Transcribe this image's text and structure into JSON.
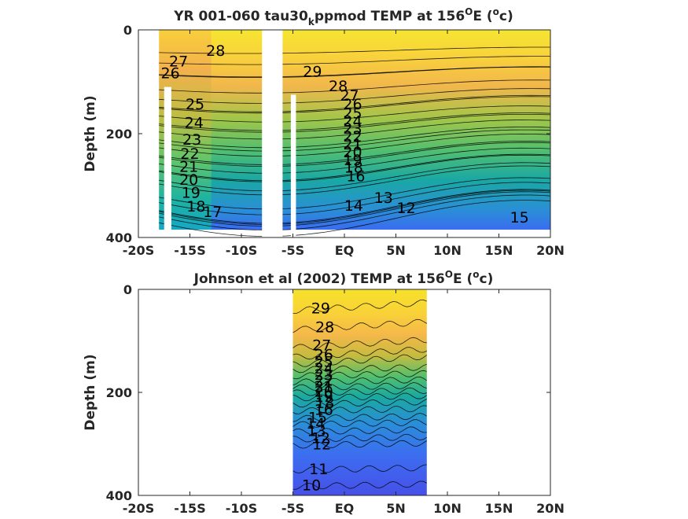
{
  "chart_data": [
    {
      "type": "heatmap",
      "title": "YR 001-060 tau30",
      "title_sub": "k",
      "title_rest": "ppmod TEMP at 156",
      "title_sup1": "O",
      "title_mid": "E (",
      "title_sup2": "o",
      "title_end": "c)",
      "ylabel": "Depth (m)",
      "xlim": [
        -20,
        20
      ],
      "ylim": [
        0,
        400
      ],
      "y_reversed": true,
      "x_ticks": [
        {
          "value": -20,
          "label": "-20S"
        },
        {
          "value": -15,
          "label": "-15S"
        },
        {
          "value": -10,
          "label": "-10S"
        },
        {
          "value": -5,
          "label": "-5S"
        },
        {
          "value": 0,
          "label": "EQ"
        },
        {
          "value": 5,
          "label": "5N"
        },
        {
          "value": 10,
          "label": "10N"
        },
        {
          "value": 15,
          "label": "15N"
        },
        {
          "value": 20,
          "label": "20N"
        }
      ],
      "y_ticks": [
        {
          "value": 0,
          "label": "0"
        },
        {
          "value": 200,
          "label": "200"
        },
        {
          "value": 400,
          "label": "400"
        }
      ],
      "data_extent": {
        "x": [
          -18,
          20
        ],
        "depth": [
          0,
          385
        ]
      },
      "masked_columns": [
        {
          "x": [
            -17.5,
            -16.8
          ],
          "depth_from": 110
        },
        {
          "x": [
            -8.0,
            -6.0
          ],
          "depth_from": 0
        },
        {
          "x": [
            -5.2,
            -4.7
          ],
          "depth_from": 125
        }
      ],
      "contour_labels": [
        {
          "x": -12.5,
          "depth": 42,
          "label": "28"
        },
        {
          "x": -16.1,
          "depth": 62,
          "label": "27"
        },
        {
          "x": -16.9,
          "depth": 85,
          "label": "26"
        },
        {
          "x": -14.5,
          "depth": 145,
          "label": "25"
        },
        {
          "x": -14.6,
          "depth": 180,
          "label": "24"
        },
        {
          "x": -14.8,
          "depth": 213,
          "label": "23"
        },
        {
          "x": -15.0,
          "depth": 240,
          "label": "22"
        },
        {
          "x": -15.1,
          "depth": 265,
          "label": "21"
        },
        {
          "x": -15.1,
          "depth": 290,
          "label": "20"
        },
        {
          "x": -14.9,
          "depth": 315,
          "label": "19"
        },
        {
          "x": -14.4,
          "depth": 342,
          "label": "18"
        },
        {
          "x": -12.8,
          "depth": 352,
          "label": "17"
        },
        {
          "x": -3.1,
          "depth": 82,
          "label": "29"
        },
        {
          "x": -0.6,
          "depth": 110,
          "label": "28"
        },
        {
          "x": 0.5,
          "depth": 128,
          "label": "27"
        },
        {
          "x": 0.8,
          "depth": 145,
          "label": "26"
        },
        {
          "x": 0.8,
          "depth": 162,
          "label": "25"
        },
        {
          "x": 0.8,
          "depth": 177,
          "label": "24"
        },
        {
          "x": 0.8,
          "depth": 192,
          "label": "23"
        },
        {
          "x": 0.8,
          "depth": 207,
          "label": "22"
        },
        {
          "x": 0.8,
          "depth": 222,
          "label": "21"
        },
        {
          "x": 0.8,
          "depth": 237,
          "label": "20"
        },
        {
          "x": 0.8,
          "depth": 252,
          "label": "19"
        },
        {
          "x": 0.9,
          "depth": 267,
          "label": "18"
        },
        {
          "x": 1.1,
          "depth": 283,
          "label": "16"
        },
        {
          "x": 0.9,
          "depth": 340,
          "label": "14"
        },
        {
          "x": 3.8,
          "depth": 325,
          "label": "13"
        },
        {
          "x": 6.0,
          "depth": 345,
          "label": "12"
        },
        {
          "x": 17.0,
          "depth": 363,
          "label": "15"
        }
      ]
    },
    {
      "type": "heatmap",
      "title": "Johnson et al (2002) TEMP at 156",
      "title_sup1": "O",
      "title_mid": "E (",
      "title_sup2": "o",
      "title_end": "c)",
      "ylabel": "Depth (m)",
      "xlim": [
        -20,
        20
      ],
      "ylim": [
        0,
        400
      ],
      "y_reversed": true,
      "x_ticks": [
        {
          "value": -20,
          "label": "-20S"
        },
        {
          "value": -15,
          "label": "-15S"
        },
        {
          "value": -10,
          "label": "-10S"
        },
        {
          "value": -5,
          "label": "-5S"
        },
        {
          "value": 0,
          "label": "EQ"
        },
        {
          "value": 5,
          "label": "5N"
        },
        {
          "value": 10,
          "label": "10N"
        },
        {
          "value": 15,
          "label": "15N"
        },
        {
          "value": 20,
          "label": "20N"
        }
      ],
      "y_ticks": [
        {
          "value": 0,
          "label": "0"
        },
        {
          "value": 200,
          "label": "200"
        },
        {
          "value": 400,
          "label": "400"
        }
      ],
      "data_extent": {
        "x": [
          -5,
          8
        ],
        "depth": [
          0,
          400
        ]
      },
      "contour_labels": [
        {
          "x": -2.3,
          "depth": 38,
          "label": "29"
        },
        {
          "x": -1.9,
          "depth": 75,
          "label": "28"
        },
        {
          "x": -2.2,
          "depth": 110,
          "label": "27"
        },
        {
          "x": -2.0,
          "depth": 128,
          "label": "26"
        },
        {
          "x": -2.0,
          "depth": 142,
          "label": "25"
        },
        {
          "x": -2.0,
          "depth": 155,
          "label": "24"
        },
        {
          "x": -2.0,
          "depth": 167,
          "label": "23"
        },
        {
          "x": -2.0,
          "depth": 179,
          "label": "22"
        },
        {
          "x": -2.0,
          "depth": 190,
          "label": "21"
        },
        {
          "x": -2.0,
          "depth": 200,
          "label": "20"
        },
        {
          "x": -2.0,
          "depth": 210,
          "label": "19"
        },
        {
          "x": -1.9,
          "depth": 222,
          "label": "18"
        },
        {
          "x": -2.0,
          "depth": 235,
          "label": "16"
        },
        {
          "x": -2.6,
          "depth": 250,
          "label": "15"
        },
        {
          "x": -2.8,
          "depth": 262,
          "label": "14"
        },
        {
          "x": -2.7,
          "depth": 276,
          "label": "13"
        },
        {
          "x": -2.3,
          "depth": 290,
          "label": "12"
        },
        {
          "x": -2.2,
          "depth": 302,
          "label": "12"
        },
        {
          "x": -2.5,
          "depth": 350,
          "label": "11"
        },
        {
          "x": -3.2,
          "depth": 382,
          "label": "10"
        }
      ]
    }
  ]
}
